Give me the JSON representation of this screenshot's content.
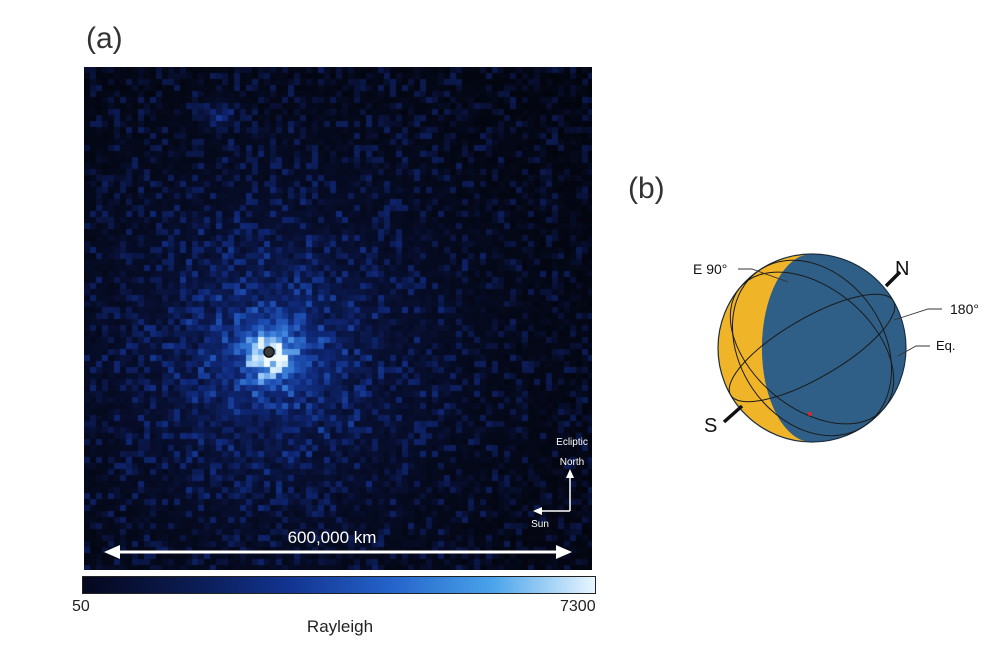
{
  "panels": {
    "a": {
      "label": "(a)",
      "scale_bar_text": "600,000 km",
      "orientation": {
        "ecliptic_line1": "Ecliptic",
        "ecliptic_line2": "North",
        "sun_label": "Sun"
      },
      "colorbar": {
        "min_label": "50",
        "max_label": "7300",
        "title": "Rayleigh"
      }
    },
    "b": {
      "label": "(b)",
      "labels": {
        "north": "N",
        "south": "S",
        "east": "E 90°",
        "meridian": "180°",
        "equator": "Eq."
      }
    }
  },
  "colors": {
    "image_background": "#02040a",
    "glow_core": "#e8f6ff",
    "glow_halo": "#2a6fd6",
    "planet_day": "#f0b429",
    "planet_night": "#2f5f86",
    "marker": "#e0262b"
  }
}
